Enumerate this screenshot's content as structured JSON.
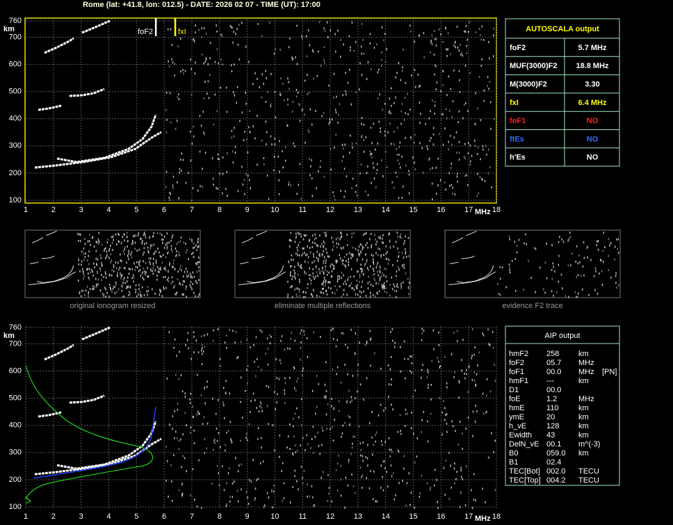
{
  "header": {
    "title": "Rome (lat: +41.8, lon: 012.5) - DATE: 2026 02 07 - TIME (UT): 17:00"
  },
  "plots": [
    {
      "xlim": [
        1,
        18
      ],
      "ylim": [
        100,
        760
      ],
      "xticks": [
        1,
        2,
        3,
        4,
        5,
        6,
        7,
        8,
        9,
        10,
        11,
        12,
        13,
        14,
        15,
        16,
        17,
        18
      ],
      "yticks": [
        100,
        200,
        300,
        400,
        500,
        600,
        700,
        760
      ],
      "x_unit": "MHz",
      "y_unit": "km",
      "annotations": [
        {
          "label": "foF2",
          "value": 5.7,
          "color": "#ffffff"
        },
        {
          "label": "fxI",
          "value": 6.4,
          "color": "#ffff00"
        }
      ]
    },
    {
      "xlim": [
        1,
        18
      ],
      "ylim": [
        100,
        760
      ],
      "xticks": [
        1,
        2,
        3,
        4,
        5,
        6,
        7,
        8,
        9,
        10,
        11,
        12,
        13,
        14,
        15,
        16,
        17,
        18
      ],
      "yticks": [
        100,
        200,
        300,
        400,
        500,
        600,
        700,
        760
      ],
      "x_unit": "MHz",
      "y_unit": "km"
    }
  ],
  "autoscala": {
    "title": "AUTOSCALA output",
    "rows": [
      {
        "name": "foF2",
        "value": "5.7 MHz",
        "color": "#ffffff"
      },
      {
        "name": "MUF(3000)F2",
        "value": "18.8 MHz",
        "color": "#ffffff"
      },
      {
        "name": "M(3000)F2",
        "value": "3.30",
        "color": "#ffffff"
      },
      {
        "name": "fxI",
        "value": "6.4 MHz",
        "color": "#ffff00"
      },
      {
        "name": "foF1",
        "value": "NO",
        "color": "#ff2020"
      },
      {
        "name": "ftEs",
        "value": "NO",
        "color": "#2f6fff"
      },
      {
        "name": "h'Es",
        "value": "NO",
        "color": "#ffffff"
      }
    ]
  },
  "thumbnails": [
    "original ionogram resized",
    "eliminate multiple reflections",
    "evidence F2 trace"
  ],
  "aip": {
    "title": "AIP output",
    "rows": [
      [
        "hmF2",
        "258",
        "km"
      ],
      [
        "foF2",
        "05.7",
        "MHz"
      ],
      [
        "foF1",
        "00.0",
        "MHz",
        "[PN]"
      ],
      [
        "hmF1",
        "---",
        "km"
      ],
      [
        "D1",
        "00.0"
      ],
      [
        "foE",
        "1.2",
        "MHz"
      ],
      [
        "hmE",
        "110",
        "km"
      ],
      [
        "ymE",
        "20",
        "km"
      ],
      [
        "h_vE",
        "128",
        "km"
      ],
      [
        "Ewidth",
        "43",
        "km"
      ],
      [
        "DelN_vE",
        "00.1",
        "m^(-3)"
      ],
      [
        "B0",
        "059.0",
        "km"
      ],
      [
        "B1",
        "02.4"
      ],
      [
        "TEC[Bot]",
        "002.0",
        "TECU"
      ],
      [
        "TEC[Top]",
        "004.2",
        "TECU"
      ]
    ]
  }
}
